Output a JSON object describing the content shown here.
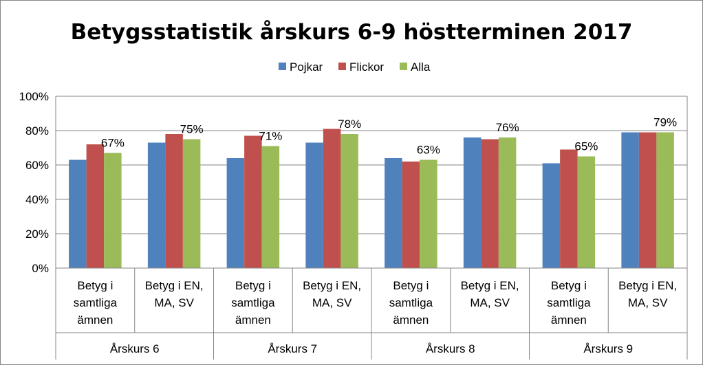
{
  "chart_data": {
    "type": "bar",
    "title": "Betygsstatistik årskurs 6-9 höstterminen 2017",
    "xlabel": "",
    "ylabel": "",
    "ylim": [
      0,
      100
    ],
    "yticks": [
      0,
      20,
      40,
      60,
      80,
      100
    ],
    "ytick_labels": [
      "0%",
      "20%",
      "40%",
      "60%",
      "80%",
      "100%"
    ],
    "grid": true,
    "legend_position": "top-center",
    "categories": [
      [
        "Betyg i",
        "samtliga",
        "ämnen"
      ],
      [
        "Betyg i EN,",
        "MA, SV"
      ],
      [
        "Betyg i",
        "samtliga",
        "ämnen"
      ],
      [
        "Betyg i EN,",
        "MA, SV"
      ],
      [
        "Betyg i",
        "samtliga",
        "ämnen"
      ],
      [
        "Betyg i EN,",
        "MA, SV"
      ],
      [
        "Betyg i",
        "samtliga",
        "ämnen"
      ],
      [
        "Betyg i EN,",
        "MA, SV"
      ]
    ],
    "groups": [
      "Årskurs 6",
      "Årskurs 7",
      "Årskurs 8",
      "Årskurs 9"
    ],
    "series": [
      {
        "name": "Pojkar",
        "color": "#4F81BD",
        "values": [
          63,
          73,
          64,
          73,
          64,
          76,
          61,
          79
        ]
      },
      {
        "name": "Flickor",
        "color": "#C0504D",
        "values": [
          72,
          78,
          77,
          81,
          62,
          75,
          69,
          79
        ]
      },
      {
        "name": "Alla",
        "color": "#9BBB59",
        "values": [
          67,
          75,
          71,
          78,
          63,
          76,
          65,
          79
        ]
      }
    ],
    "data_labels": {
      "series": "Alla",
      "labels": [
        "67%",
        "75%",
        "71%",
        "78%",
        "63%",
        "76%",
        "65%",
        "79%"
      ]
    }
  }
}
